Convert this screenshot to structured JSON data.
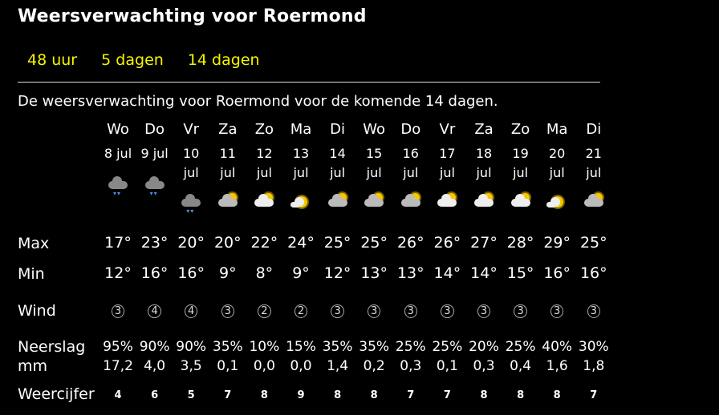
{
  "title": "Weersverwachting voor Roermond",
  "tabs": [
    "48 uur",
    "5 dagen",
    "14 dagen"
  ],
  "intro": "De weersverwachting voor Roermond voor de komende 14 dagen.",
  "labels": {
    "max": "Max",
    "min": "Min",
    "wind": "Wind",
    "neerslag": "Neerslag",
    "mm": "mm",
    "weercijfer": "Weercijfer"
  },
  "days": [
    {
      "day": "Wo",
      "date": "8 jul",
      "icon": "rain",
      "max": "17°",
      "min": "12°",
      "wind": "3",
      "rain": "95%",
      "mm": "17,2",
      "cijfer": "4"
    },
    {
      "day": "Do",
      "date": "9 jul",
      "icon": "rain",
      "max": "23°",
      "min": "16°",
      "wind": "4",
      "rain": "90%",
      "mm": "4,0",
      "cijfer": "6"
    },
    {
      "day": "Vr",
      "date": "10 jul",
      "icon": "rain",
      "max": "20°",
      "min": "16°",
      "wind": "4",
      "rain": "90%",
      "mm": "3,5",
      "cijfer": "5"
    },
    {
      "day": "Za",
      "date": "11 jul",
      "icon": "partly-cloudy",
      "max": "20°",
      "min": "9°",
      "wind": "3",
      "rain": "35%",
      "mm": "0,1",
      "cijfer": "7"
    },
    {
      "day": "Zo",
      "date": "12 jul",
      "icon": "partly-cloudy-light",
      "max": "22°",
      "min": "8°",
      "wind": "2",
      "rain": "10%",
      "mm": "0,0",
      "cijfer": "8"
    },
    {
      "day": "Ma",
      "date": "13 jul",
      "icon": "sunny",
      "max": "24°",
      "min": "9°",
      "wind": "2",
      "rain": "15%",
      "mm": "0,0",
      "cijfer": "9"
    },
    {
      "day": "Di",
      "date": "14 jul",
      "icon": "partly-cloudy",
      "max": "25°",
      "min": "12°",
      "wind": "3",
      "rain": "35%",
      "mm": "1,4",
      "cijfer": "8"
    },
    {
      "day": "Wo",
      "date": "15 jul",
      "icon": "partly-cloudy",
      "max": "25°",
      "min": "13°",
      "wind": "3",
      "rain": "35%",
      "mm": "0,2",
      "cijfer": "8"
    },
    {
      "day": "Do",
      "date": "16 jul",
      "icon": "partly-cloudy",
      "max": "26°",
      "min": "13°",
      "wind": "3",
      "rain": "25%",
      "mm": "0,3",
      "cijfer": "7"
    },
    {
      "day": "Vr",
      "date": "17 jul",
      "icon": "partly-cloudy-light",
      "max": "26°",
      "min": "14°",
      "wind": "3",
      "rain": "25%",
      "mm": "0,1",
      "cijfer": "7"
    },
    {
      "day": "Za",
      "date": "18 jul",
      "icon": "partly-cloudy-light",
      "max": "27°",
      "min": "14°",
      "wind": "3",
      "rain": "20%",
      "mm": "0,3",
      "cijfer": "8"
    },
    {
      "day": "Zo",
      "date": "19 jul",
      "icon": "partly-cloudy-light",
      "max": "28°",
      "min": "15°",
      "wind": "3",
      "rain": "25%",
      "mm": "0,4",
      "cijfer": "8"
    },
    {
      "day": "Ma",
      "date": "20 jul",
      "icon": "sunny",
      "max": "29°",
      "min": "16°",
      "wind": "3",
      "rain": "40%",
      "mm": "1,6",
      "cijfer": "8"
    },
    {
      "day": "Di",
      "date": "21 jul",
      "icon": "partly-cloudy",
      "max": "25°",
      "min": "16°",
      "wind": "3",
      "rain": "30%",
      "mm": "1,8",
      "cijfer": "7"
    }
  ],
  "colors": {
    "tab": "#f5f500",
    "background": "#000000",
    "text": "#ffffff"
  }
}
